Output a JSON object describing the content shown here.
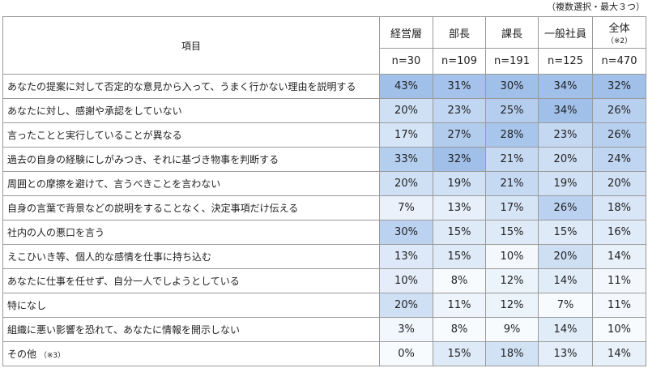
{
  "note": "（複数選択・最大３つ）",
  "header": {
    "item": "項目",
    "columns": [
      {
        "label": "経営層",
        "n": "n=30"
      },
      {
        "label": "部長",
        "n": "n=109"
      },
      {
        "label": "課長",
        "n": "n=191"
      },
      {
        "label": "一般社員",
        "n": "n=125"
      },
      {
        "label": "全体",
        "sub": "（※2）",
        "n": "n=470"
      }
    ]
  },
  "rows": [
    {
      "label": "あなたの提案に対して否定的な意見から入って、うまく行かない理由を説明する",
      "values": [
        "43%",
        "31%",
        "30%",
        "34%",
        "32%"
      ]
    },
    {
      "label": "あなたに対し、感謝や承認をしていない",
      "values": [
        "20%",
        "23%",
        "25%",
        "34%",
        "26%"
      ]
    },
    {
      "label": "言ったことと実行していることが異なる",
      "values": [
        "17%",
        "27%",
        "28%",
        "23%",
        "26%"
      ]
    },
    {
      "label": "過去の自身の経験にしがみつき、それに基づき物事を判断する",
      "values": [
        "33%",
        "32%",
        "21%",
        "20%",
        "24%"
      ]
    },
    {
      "label": "周囲との摩擦を避けて、言うべきことを言わない",
      "values": [
        "20%",
        "19%",
        "21%",
        "19%",
        "20%"
      ]
    },
    {
      "label": "自身の言葉で背景などの説明をすることなく、決定事項だけ伝える",
      "values": [
        "7%",
        "13%",
        "17%",
        "26%",
        "18%"
      ]
    },
    {
      "label": "社内の人の悪口を言う",
      "values": [
        "30%",
        "15%",
        "15%",
        "15%",
        "16%"
      ]
    },
    {
      "label": "えこひいき等、個人的な感情を仕事に持ち込む",
      "values": [
        "13%",
        "15%",
        "10%",
        "20%",
        "14%"
      ]
    },
    {
      "label": "あなたに仕事を任せず、自分一人でしようとしている",
      "values": [
        "10%",
        "8%",
        "12%",
        "14%",
        "11%"
      ]
    },
    {
      "label": "特になし",
      "values": [
        "20%",
        "11%",
        "12%",
        "7%",
        "11%"
      ]
    },
    {
      "label": "組織に悪い影響を恐れて、あなたに情報を開示しない",
      "values": [
        "3%",
        "8%",
        "9%",
        "14%",
        "10%"
      ]
    },
    {
      "label": "その他",
      "sub": "（※3）",
      "values": [
        "0%",
        "15%",
        "18%",
        "13%",
        "14%"
      ]
    }
  ]
}
